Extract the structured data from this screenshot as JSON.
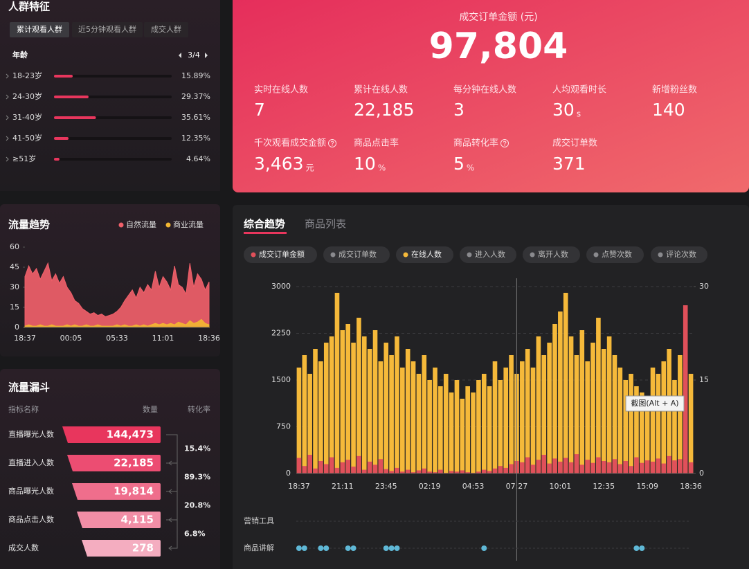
{
  "audience": {
    "title": "人群特征",
    "tabs": [
      "累计观看人群",
      "近5分钟观看人群",
      "成交人群"
    ],
    "pager": "3/4"
  },
  "sales": {
    "title": "成交订单金额 (元)",
    "total": "97,804",
    "metrics": [
      {
        "label": "实时在线人数",
        "value": "7"
      },
      {
        "label": "累计在线人数",
        "value": "22,185"
      },
      {
        "label": "每分钟在线人数",
        "value": "3"
      },
      {
        "label": "人均观看时长",
        "value": "30",
        "unit": "s"
      },
      {
        "label": "新增粉丝数",
        "value": "140"
      },
      {
        "label": "千次观看成交金额",
        "value": "3,463",
        "unit": "元",
        "help": true
      },
      {
        "label": "商品点击率",
        "value": "10",
        "unit": "%"
      },
      {
        "label": "商品转化率",
        "value": "5",
        "unit": "%",
        "help": true
      },
      {
        "label": "成交订单数",
        "value": "371"
      }
    ]
  },
  "funnel": {
    "title": "流量漏斗",
    "headers": [
      "指标名称",
      "数量",
      "转化率"
    ],
    "rows": [
      {
        "label": "直播曝光人数",
        "value": "144,473"
      },
      {
        "label": "直播进入人数",
        "value": "22,185"
      },
      {
        "label": "商品曝光人数",
        "value": "19,814"
      },
      {
        "label": "商品点击人数",
        "value": "4,115"
      },
      {
        "label": "成交人数",
        "value": "278"
      }
    ],
    "rates": [
      "15.4%",
      "89.3%",
      "20.8%",
      "6.8%"
    ]
  },
  "overview": {
    "tabs": [
      "综合趋势",
      "商品列表"
    ],
    "tooltip": "截图(Alt + A)"
  },
  "chart_data": [
    {
      "type": "hbar",
      "title": "年龄",
      "categories": [
        "18-23岁",
        "24-30岁",
        "31-40岁",
        "41-50岁",
        "≥51岁"
      ],
      "values": [
        15.89,
        29.37,
        35.61,
        12.35,
        4.64
      ],
      "value_labels": [
        "15.89%",
        "29.37%",
        "35.61%",
        "12.35%",
        "4.64%"
      ],
      "xlim": [
        0,
        100
      ],
      "color": "#e8365d"
    },
    {
      "type": "area",
      "title": "流量趋势",
      "categories": [
        "18:37",
        null,
        null,
        null,
        null,
        null,
        null,
        null,
        null,
        null,
        null,
        null,
        "00:05",
        null,
        null,
        null,
        null,
        null,
        null,
        null,
        null,
        null,
        null,
        null,
        "05:33",
        null,
        null,
        null,
        null,
        null,
        null,
        null,
        null,
        null,
        null,
        null,
        "11:01",
        null,
        null,
        null,
        null,
        null,
        null,
        null,
        null,
        null,
        null,
        null,
        "18:36"
      ],
      "series": [
        {
          "name": "自然流量",
          "color": "#f0606a",
          "values": [
            38,
            46,
            40,
            44,
            36,
            42,
            48,
            35,
            40,
            33,
            38,
            30,
            26,
            20,
            18,
            14,
            12,
            10,
            11,
            9,
            10,
            8,
            9,
            10,
            12,
            15,
            20,
            24,
            28,
            22,
            30,
            26,
            32,
            28,
            42,
            30,
            38,
            34,
            28,
            46,
            32,
            30,
            25,
            48,
            30,
            40,
            36,
            28,
            34
          ]
        },
        {
          "name": "商业流量",
          "color": "#f2b632",
          "values": [
            1,
            2,
            1,
            1,
            2,
            1,
            1,
            2,
            1,
            1,
            1,
            2,
            1,
            2,
            1,
            1,
            2,
            1,
            1,
            2,
            1,
            1,
            1,
            1,
            2,
            1,
            2,
            1,
            1,
            2,
            1,
            2,
            1,
            2,
            3,
            2,
            3,
            2,
            3,
            2,
            4,
            3,
            2,
            5,
            3,
            4,
            6,
            3,
            2
          ]
        }
      ],
      "ylim": [
        0,
        60
      ],
      "yticks": [
        0,
        15,
        30,
        45,
        60
      ]
    },
    {
      "type": "bar",
      "categories": [
        "18:37",
        null,
        null,
        null,
        null,
        null,
        null,
        null,
        "21:11",
        null,
        null,
        null,
        null,
        null,
        null,
        null,
        "23:45",
        null,
        null,
        null,
        null,
        null,
        null,
        null,
        "02:19",
        null,
        null,
        null,
        null,
        null,
        null,
        null,
        "04:53",
        null,
        null,
        null,
        null,
        null,
        null,
        null,
        "07:27",
        null,
        null,
        null,
        null,
        null,
        null,
        null,
        "10:01",
        null,
        null,
        null,
        null,
        null,
        null,
        null,
        "12:35",
        null,
        null,
        null,
        null,
        null,
        null,
        null,
        "15:09",
        null,
        null,
        null,
        null,
        null,
        null,
        null,
        "18:36"
      ],
      "series": [
        {
          "name": "在线人数",
          "color": "#f5b93a",
          "axis": "y2",
          "values": [
            17,
            19,
            16,
            20,
            18,
            21,
            22,
            29,
            23,
            24,
            21,
            25,
            22,
            20,
            23,
            18,
            21,
            19,
            22,
            17,
            20,
            18,
            16,
            19,
            15,
            17,
            14,
            16,
            13,
            15,
            12,
            14,
            13,
            15,
            16,
            14,
            18,
            15,
            17,
            19,
            16,
            18,
            20,
            17,
            22,
            19,
            21,
            24,
            26,
            29,
            22,
            19,
            23,
            18,
            21,
            25,
            20,
            22,
            19,
            17,
            15,
            16,
            14,
            13,
            12,
            17,
            16,
            18,
            20,
            15,
            19,
            17,
            16
          ]
        },
        {
          "name": "成交订单金额",
          "color": "#e0505a",
          "values": [
            250,
            120,
            300,
            80,
            200,
            150,
            260,
            90,
            180,
            220,
            110,
            280,
            60,
            190,
            140,
            230,
            70,
            40,
            90,
            30,
            60,
            20,
            50,
            80,
            30,
            20,
            60,
            10,
            40,
            30,
            50,
            20,
            10,
            30,
            60,
            40,
            80,
            120,
            90,
            150,
            200,
            180,
            260,
            140,
            220,
            300,
            160,
            240,
            190,
            250,
            180,
            310,
            140,
            220,
            170,
            260,
            200,
            180,
            230,
            150,
            200,
            120,
            260,
            170,
            210,
            190,
            240,
            160,
            280,
            210,
            230,
            2700,
            180
          ]
        }
      ],
      "legend_inactive": [
        "成交订单数",
        "进入人数",
        "离开人数",
        "点赞次数",
        "评论次数"
      ],
      "ylim": [
        0,
        3000
      ],
      "yticks": [
        0,
        750,
        1500,
        2250,
        3000
      ],
      "y2lim": [
        0,
        30
      ],
      "y2ticks": [
        0,
        15,
        30
      ],
      "grid": true,
      "events": [
        {
          "label": "营销工具",
          "points": []
        },
        {
          "label": "商品讲解",
          "points": [
            0,
            1,
            4,
            5,
            9,
            10,
            16,
            17,
            18,
            34,
            62,
            63
          ]
        }
      ]
    }
  ]
}
